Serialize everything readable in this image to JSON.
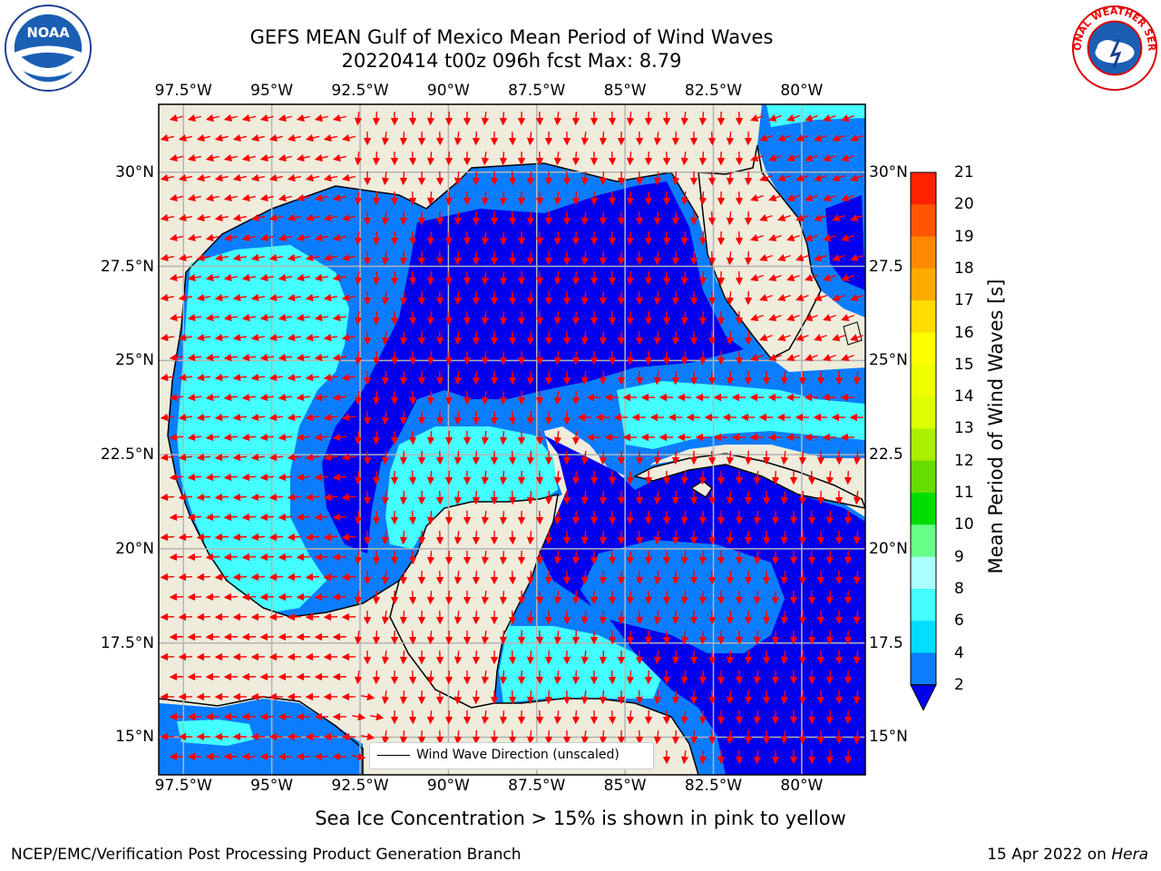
{
  "title_line1": "GEFS MEAN Gulf of Mexico Mean Period of Wind Waves",
  "title_line2": "20220414 t00z 096h fcst   Max: 8.79",
  "lon_labels": [
    "97.5°W",
    "95°W",
    "92.5°W",
    "90°W",
    "87.5°W",
    "85°W",
    "82.5°W",
    "80°W"
  ],
  "lat_labels": [
    "30°N",
    "27.5°N",
    "25°N",
    "22.5°N",
    "20°N",
    "17.5°N",
    "15°N"
  ],
  "lat_labels_right": [
    "30°N",
    "27.5",
    "25°N",
    "22.5",
    "20°N",
    "17.5",
    "15°N"
  ],
  "map_extent": {
    "lon": [
      -98.2,
      -78.2
    ],
    "lat": [
      14.0,
      31.8
    ]
  },
  "colorbar": {
    "label": "Mean Period of Wind Waves [s]",
    "ticks": [
      "2",
      "4",
      "6",
      "8",
      "9",
      "10",
      "11",
      "12",
      "13",
      "14",
      "15",
      "16",
      "17",
      "18",
      "19",
      "20",
      "21"
    ],
    "colors": [
      "#0a7dff",
      "#00ddff",
      "#44ffff",
      "#aaffff",
      "#66ff88",
      "#00dd00",
      "#66dd00",
      "#aaee00",
      "#ddff00",
      "#eeff00",
      "#ffff00",
      "#ffdd00",
      "#ffaa00",
      "#ff8800",
      "#ff5500",
      "#ff2200"
    ],
    "under_color": "#0000ee"
  },
  "colors": {
    "land": "#efecdc",
    "arrow": "#ff0000",
    "grid": "#b4b4b4"
  },
  "legend": {
    "label": "Wind Wave Direction (unscaled)"
  },
  "note": "Sea Ice Concentration > 15% is shown in pink to yellow",
  "footer_left": "NCEP/EMC/Verification Post Processing Product Generation Branch",
  "footer_date": "15 Apr 2022 on ",
  "footer_host": "Hera",
  "logos": {
    "left": "NOAA",
    "right": "NATIONAL WEATHER SERVICE"
  }
}
